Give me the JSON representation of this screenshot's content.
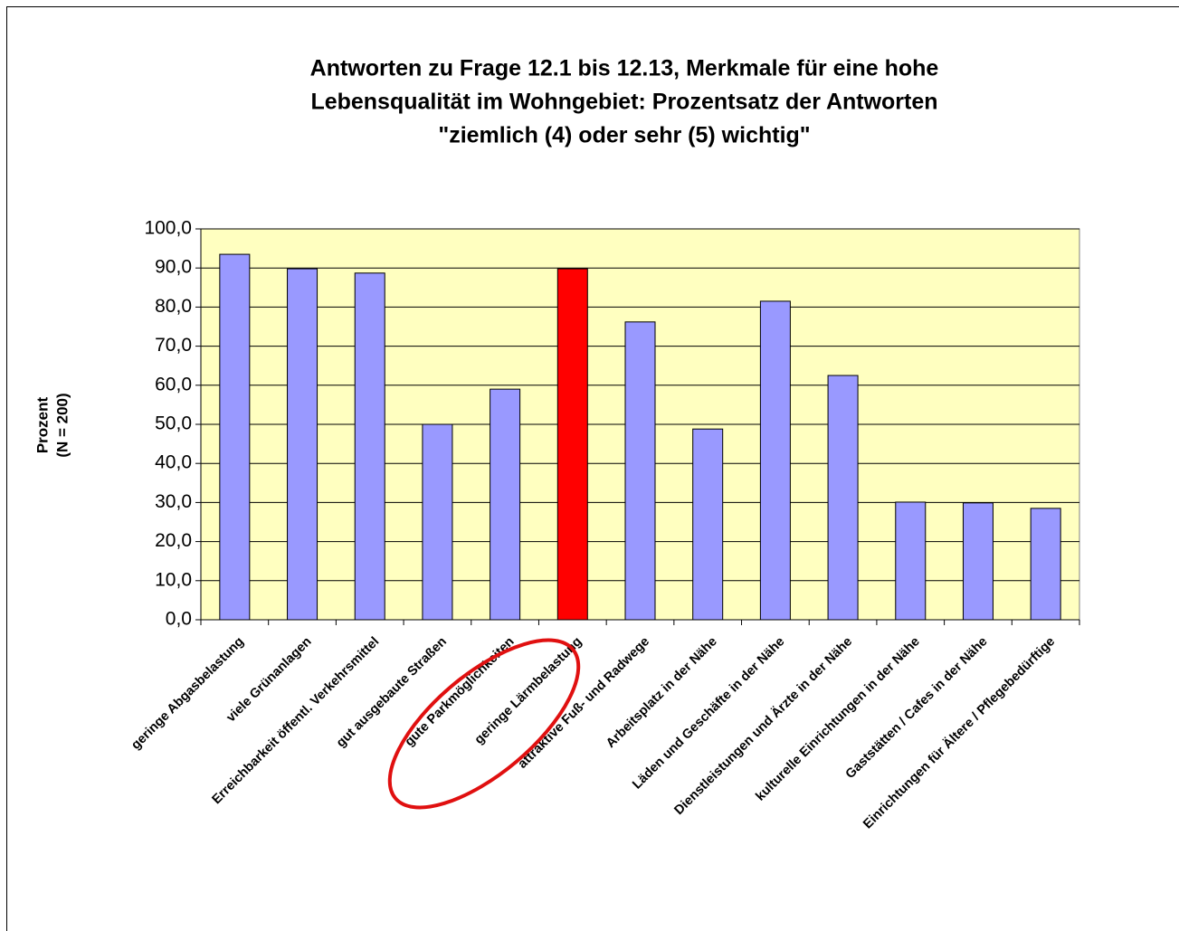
{
  "chart_data": {
    "type": "bar",
    "title": [
      "Antworten zu Frage 12.1 bis 12.13, Merkmale für eine hohe",
      "Lebensqualität im Wohngebiet: Prozentsatz der Antworten",
      "\"ziemlich (4) oder sehr (5) wichtig\""
    ],
    "y_label": [
      "Prozent",
      "(N = 200)"
    ],
    "categories": [
      "geringe Abgasbelastung",
      "viele Grünanlagen",
      "Erreichbarkeit öffentl. Verkehrsmittel",
      "gut ausgebaute Straßen",
      "gute Parkmöglichkeiten",
      "geringe Lärmbelastung",
      "attraktive Fuß- und Radwege",
      "Arbeitsplatz in der Nähe",
      "Läden und Geschäfte in der Nähe",
      "Dienstleistungen und Ärzte in der Nähe",
      "kulturelle Einrichtungen in der Nähe",
      "Gaststätten / Cafes in der Nähe",
      "Einrichtungen für Ältere / Pflegebedürftige"
    ],
    "values": [
      93.5,
      89.8,
      88.7,
      50.0,
      59.0,
      89.8,
      76.2,
      48.8,
      81.5,
      62.5,
      30.1,
      29.9,
      28.5
    ],
    "colors": [
      "#9999ff",
      "#9999ff",
      "#9999ff",
      "#9999ff",
      "#9999ff",
      "#ff0000",
      "#9999ff",
      "#9999ff",
      "#9999ff",
      "#9999ff",
      "#9999ff",
      "#9999ff",
      "#9999ff"
    ],
    "ylim": [
      0,
      100
    ],
    "yticks": [
      {
        "value": 0,
        "label": "0,0"
      },
      {
        "value": 10,
        "label": "10,0"
      },
      {
        "value": 20,
        "label": "20,0"
      },
      {
        "value": 30,
        "label": "30,0"
      },
      {
        "value": 40,
        "label": "40,0"
      },
      {
        "value": 50,
        "label": "50,0"
      },
      {
        "value": 60,
        "label": "60,0"
      },
      {
        "value": 70,
        "label": "70,0"
      },
      {
        "value": 80,
        "label": "80,0"
      },
      {
        "value": 90,
        "label": "90,0"
      },
      {
        "value": {
          "v": 100
        },
        "label": "100,0"
      }
    ],
    "grid": true,
    "plot_background": "#ffffc0"
  }
}
